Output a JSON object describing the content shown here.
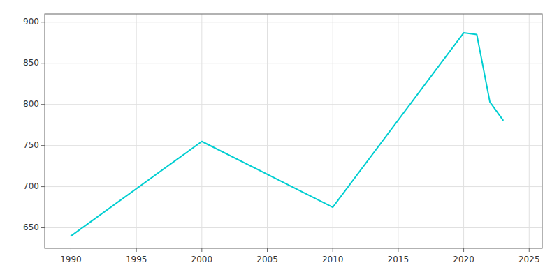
{
  "chart_data": {
    "type": "line",
    "x": [
      1990,
      2000,
      2010,
      2020,
      2021,
      2022,
      2023
    ],
    "values": [
      640,
      755,
      675,
      887,
      885,
      803,
      781
    ],
    "color": "#00CED1",
    "xlim": [
      1988,
      2026
    ],
    "ylim": [
      625,
      910
    ],
    "xticks": [
      1990,
      1995,
      2000,
      2005,
      2010,
      2015,
      2020,
      2025
    ],
    "yticks": [
      650,
      700,
      750,
      800,
      850,
      900
    ],
    "grid": true
  }
}
